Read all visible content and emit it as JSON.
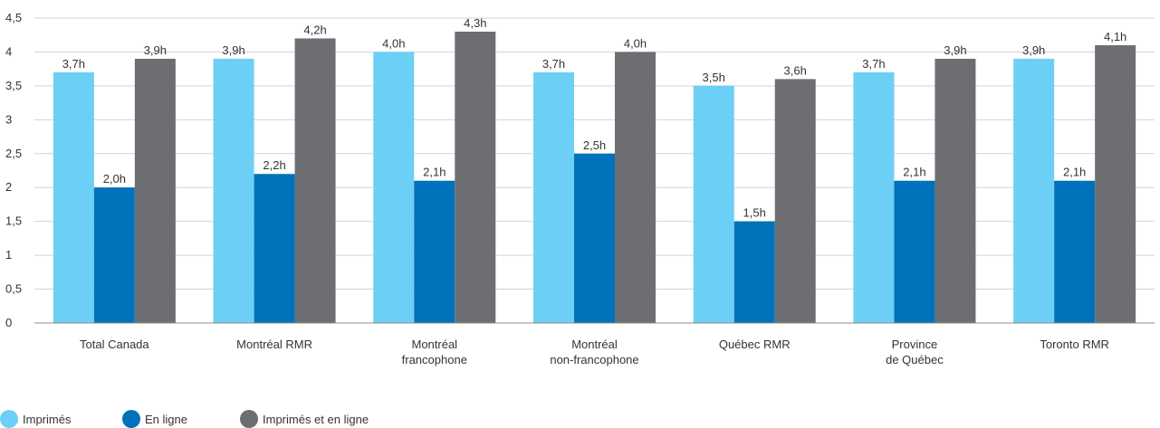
{
  "chart_data": {
    "type": "bar",
    "categories": [
      "Total Canada",
      "Montréal RMR",
      "Montréal\nfrancophone",
      "Montréal\nnon-francophone",
      "Québec RMR",
      "Province\nde Québec",
      "Toronto RMR"
    ],
    "series": [
      {
        "name": "Imprimés",
        "color": "#6ccff6",
        "values": [
          3.7,
          3.9,
          4.0,
          3.7,
          3.5,
          3.7,
          3.9
        ],
        "labels": [
          "3,7h",
          "3,9h",
          "4,0h",
          "3,7h",
          "3,5h",
          "3,7h",
          "3,9h"
        ]
      },
      {
        "name": "En ligne",
        "color": "#0072bc",
        "values": [
          2.0,
          2.2,
          2.1,
          2.5,
          1.5,
          2.1,
          2.1
        ],
        "labels": [
          "2,0h",
          "2,2h",
          "2,1h",
          "2,5h",
          "1,5h",
          "2,1h",
          "2,1h"
        ]
      },
      {
        "name": "Imprimés et en ligne",
        "color": "#6d6e71",
        "values": [
          3.9,
          4.2,
          4.3,
          4.0,
          3.6,
          3.9,
          4.1
        ],
        "labels": [
          "3,9h",
          "4,2h",
          "4,3h",
          "4,0h",
          "3,6h",
          "3,9h",
          "4,1h"
        ]
      }
    ],
    "yticks": [
      0,
      0.5,
      1,
      1.5,
      2,
      2.5,
      3,
      3.5,
      4,
      4.5
    ],
    "ytick_labels": [
      "0",
      "0,5",
      "1",
      "1,5",
      "2",
      "2,5",
      "3",
      "3,5",
      "4",
      "4,5"
    ],
    "ylim": [
      0,
      4.5
    ],
    "grid": true,
    "legend_position": "bottom-left",
    "title": "",
    "xlabel": "",
    "ylabel": ""
  }
}
